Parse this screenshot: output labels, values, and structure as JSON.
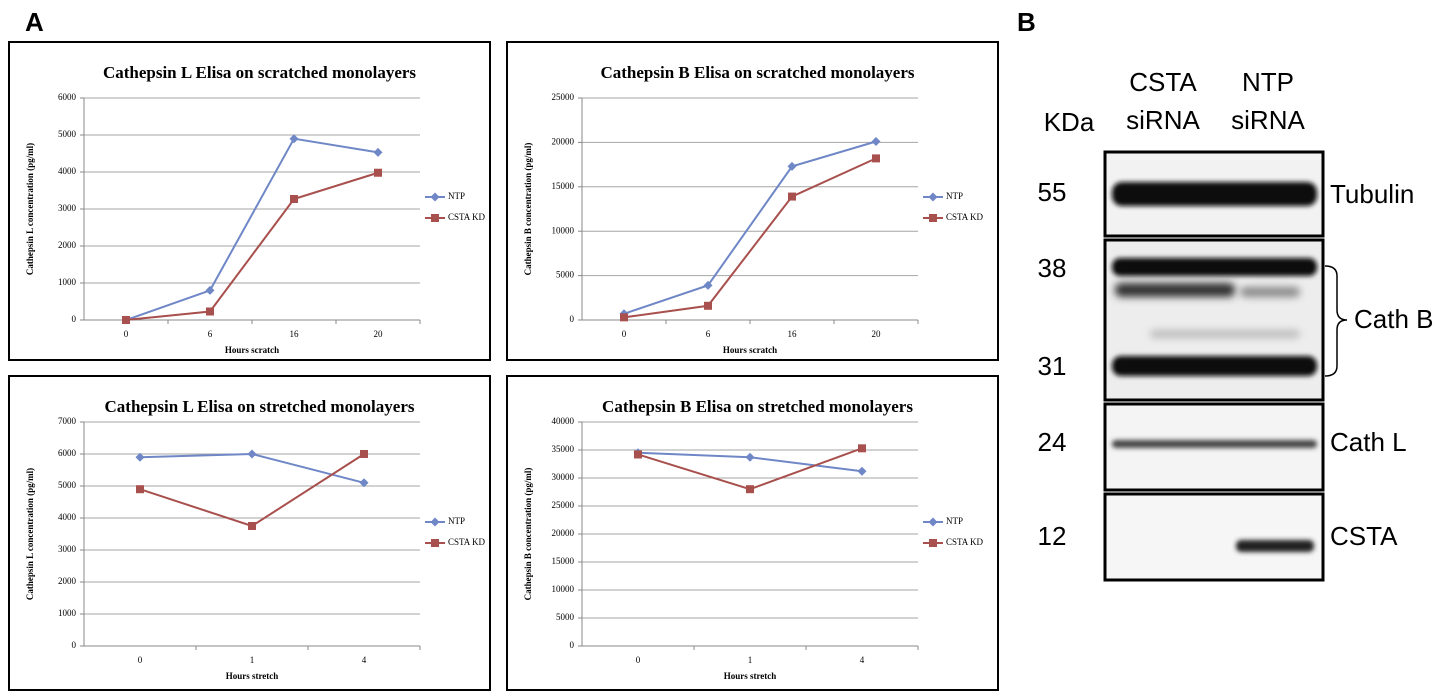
{
  "panel_labels": {
    "a": "A",
    "b": "B"
  },
  "chart_data": [
    {
      "type": "line",
      "title": "Cathepsin L Elisa on scratched monolayers",
      "x_label": "Hours scratch",
      "y_label": "Cathepsin L concentration (pg/ml)",
      "categories": [
        "0",
        "6",
        "16",
        "20"
      ],
      "ylim": [
        0,
        6000
      ],
      "yticks": [
        0,
        1000,
        2000,
        3000,
        4000,
        5000,
        6000
      ],
      "grid": true,
      "legend": "right",
      "series": [
        {
          "name": "NTP",
          "color": "#6f87c6",
          "marker": "diamond",
          "values": [
            0,
            800,
            4900,
            4530
          ]
        },
        {
          "name": "CSTA KD",
          "color": "#a8504d",
          "marker": "square",
          "values": [
            0,
            230,
            3270,
            3980
          ]
        }
      ]
    },
    {
      "type": "line",
      "title": "Cathepsin B Elisa on scratched monolayers",
      "x_label": "Hours scratch",
      "y_label": "Cathepsin B concentration (pg/ml)",
      "categories": [
        "0",
        "6",
        "16",
        "20"
      ],
      "ylim": [
        0,
        25000
      ],
      "yticks": [
        0,
        5000,
        10000,
        15000,
        20000,
        25000
      ],
      "grid": true,
      "legend": "right",
      "series": [
        {
          "name": "NTP",
          "color": "#6f87c6",
          "marker": "diamond",
          "values": [
            700,
            3900,
            17300,
            20100
          ]
        },
        {
          "name": "CSTA KD",
          "color": "#a8504d",
          "marker": "square",
          "values": [
            300,
            1600,
            13900,
            18200
          ]
        }
      ]
    },
    {
      "type": "line",
      "title": "Cathepsin L Elisa on stretched monolayers",
      "x_label": "Hours stretch",
      "y_label": "Cathepsin L concentration (pg/ml)",
      "categories": [
        "0",
        "1",
        "4"
      ],
      "ylim": [
        0,
        7000
      ],
      "yticks": [
        0,
        1000,
        2000,
        3000,
        4000,
        5000,
        6000,
        7000
      ],
      "grid": true,
      "legend": "right",
      "series": [
        {
          "name": "NTP",
          "color": "#6f87c6",
          "marker": "diamond",
          "values": [
            5900,
            6000,
            5100
          ]
        },
        {
          "name": "CSTA KD",
          "color": "#a8504d",
          "marker": "square",
          "values": [
            4900,
            3750,
            6000
          ]
        }
      ]
    },
    {
      "type": "line",
      "title": "Cathepsin B Elisa on stretched monolayers",
      "x_label": "Hours stretch",
      "y_label": "Cathepsin B concentration (pg/ml)",
      "categories": [
        "0",
        "1",
        "4"
      ],
      "ylim": [
        0,
        40000
      ],
      "yticks": [
        0,
        5000,
        10000,
        15000,
        20000,
        25000,
        30000,
        35000,
        40000
      ],
      "grid": true,
      "legend": "right",
      "series": [
        {
          "name": "NTP",
          "color": "#6f87c6",
          "marker": "diamond",
          "values": [
            34500,
            33700,
            31200
          ]
        },
        {
          "name": "CSTA KD",
          "color": "#a8504d",
          "marker": "square",
          "values": [
            34200,
            28000,
            35300
          ]
        }
      ]
    }
  ],
  "blot": {
    "unit": "KDa",
    "lanes": [
      [
        "CSTA",
        "siRNA"
      ],
      [
        "NTP",
        "siRNA"
      ]
    ],
    "markers": [
      "55",
      "38",
      "31",
      "24",
      "12"
    ],
    "proteins": [
      "Tubulin",
      "Cath B",
      "Cath L",
      "CSTA"
    ]
  }
}
